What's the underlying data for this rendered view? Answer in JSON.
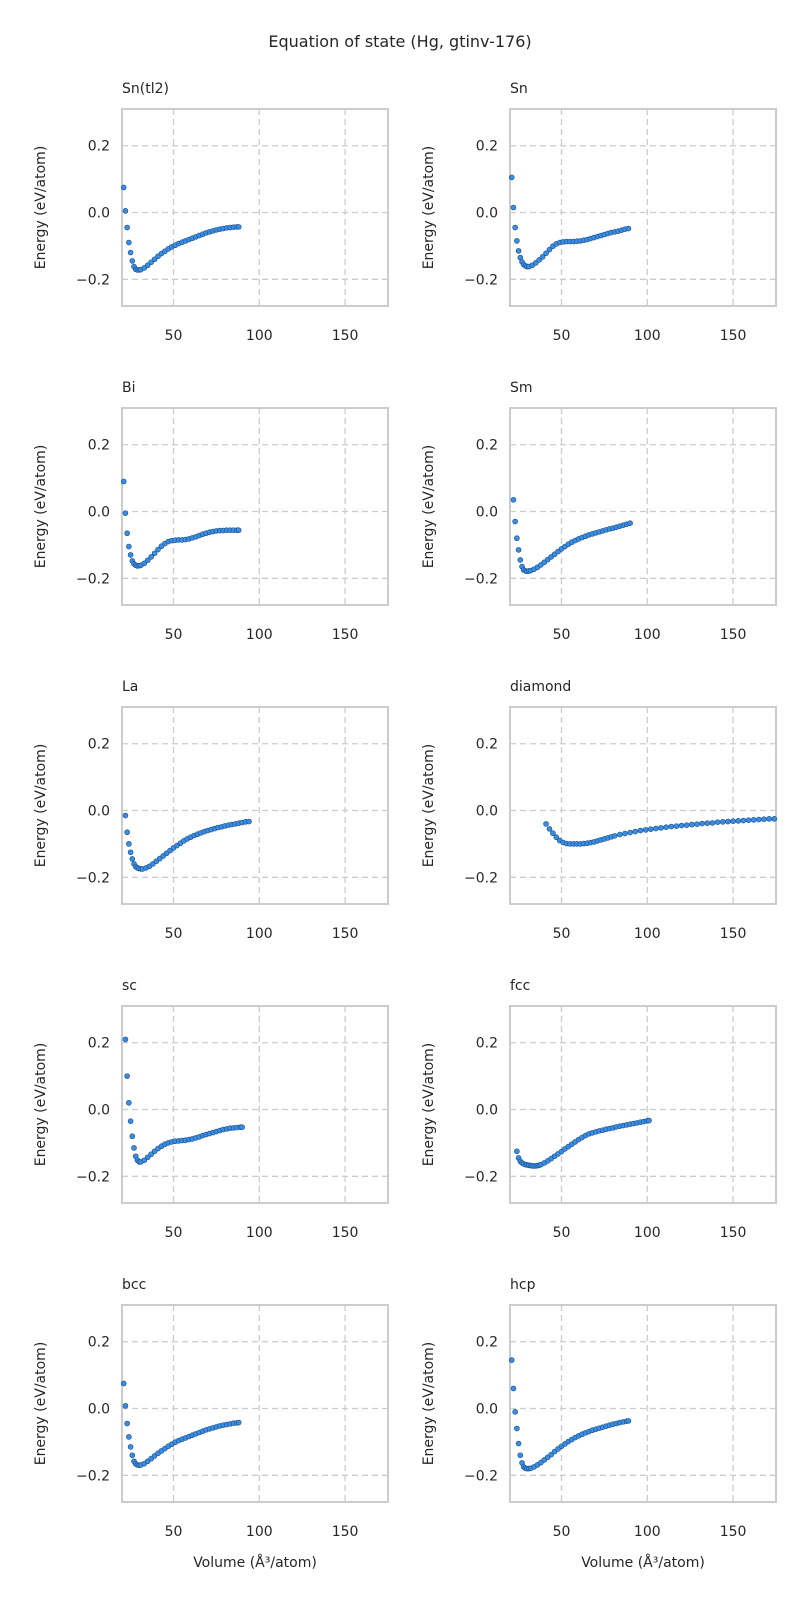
{
  "figure": {
    "title": "Equation of state (Hg, gtinv-176)",
    "xlabel": "Volume (Å³/atom)",
    "ylabel": "Energy (eV/atom)"
  },
  "style": {
    "marker_fill": "#3a8de0",
    "marker_edge": "#1a4f8f",
    "axis_color": "#cccccc",
    "grid_color": "#cccccc",
    "text_color": "#262626"
  },
  "chart_data": [
    {
      "type": "scatter",
      "title": "Sn(tl2)",
      "xlim": [
        20,
        175
      ],
      "ylim": [
        -0.28,
        0.31
      ],
      "xticks": [
        50,
        100,
        150
      ],
      "yticks": [
        0.2,
        0.0,
        -0.2
      ],
      "yticklabels": [
        "0.2",
        "0.0",
        "−0.2"
      ],
      "grid": true,
      "x": [
        21,
        22,
        23,
        24,
        25,
        26,
        27,
        28,
        29,
        30,
        31,
        33,
        35,
        37,
        39,
        41,
        43,
        45,
        47,
        49,
        51,
        53,
        55,
        57,
        59,
        61,
        63,
        65,
        67,
        69,
        71,
        73,
        75,
        77,
        79,
        81,
        83,
        85,
        87,
        88
      ],
      "y": [
        0.075,
        0.005,
        -0.045,
        -0.09,
        -0.12,
        -0.145,
        -0.162,
        -0.17,
        -0.172,
        -0.172,
        -0.171,
        -0.166,
        -0.158,
        -0.149,
        -0.14,
        -0.131,
        -0.123,
        -0.116,
        -0.109,
        -0.103,
        -0.098,
        -0.093,
        -0.089,
        -0.085,
        -0.081,
        -0.077,
        -0.073,
        -0.069,
        -0.065,
        -0.061,
        -0.058,
        -0.055,
        -0.052,
        -0.05,
        -0.048,
        -0.046,
        -0.045,
        -0.044,
        -0.043,
        -0.043
      ]
    },
    {
      "type": "scatter",
      "title": "Sn",
      "xlim": [
        20,
        175
      ],
      "ylim": [
        -0.28,
        0.31
      ],
      "xticks": [
        50,
        100,
        150
      ],
      "yticks": [
        0.2,
        0.0,
        -0.2
      ],
      "yticklabels": [
        "0.2",
        "0.0",
        "−0.2"
      ],
      "grid": true,
      "x": [
        21,
        22,
        23,
        24,
        25,
        26,
        27,
        28,
        29,
        30,
        31,
        33,
        35,
        37,
        39,
        41,
        43,
        45,
        47,
        49,
        51,
        53,
        55,
        57,
        59,
        61,
        63,
        65,
        67,
        69,
        71,
        73,
        75,
        77,
        79,
        81,
        83,
        85,
        87,
        89
      ],
      "y": [
        0.105,
        0.015,
        -0.045,
        -0.085,
        -0.115,
        -0.135,
        -0.148,
        -0.156,
        -0.16,
        -0.162,
        -0.162,
        -0.158,
        -0.151,
        -0.142,
        -0.133,
        -0.122,
        -0.111,
        -0.101,
        -0.094,
        -0.09,
        -0.088,
        -0.087,
        -0.087,
        -0.087,
        -0.086,
        -0.085,
        -0.083,
        -0.081,
        -0.078,
        -0.075,
        -0.072,
        -0.069,
        -0.066,
        -0.063,
        -0.06,
        -0.058,
        -0.056,
        -0.053,
        -0.05,
        -0.048
      ]
    },
    {
      "type": "scatter",
      "title": "Bi",
      "xlim": [
        20,
        175
      ],
      "ylim": [
        -0.28,
        0.31
      ],
      "xticks": [
        50,
        100,
        150
      ],
      "yticks": [
        0.2,
        0.0,
        -0.2
      ],
      "yticklabels": [
        "0.2",
        "0.0",
        "−0.2"
      ],
      "grid": true,
      "x": [
        21,
        22,
        23,
        24,
        25,
        26,
        27,
        28,
        29,
        30,
        31,
        33,
        35,
        37,
        39,
        41,
        43,
        45,
        47,
        49,
        51,
        53,
        55,
        57,
        59,
        61,
        63,
        65,
        67,
        69,
        71,
        73,
        75,
        77,
        79,
        81,
        83,
        85,
        87,
        88
      ],
      "y": [
        0.09,
        -0.005,
        -0.065,
        -0.105,
        -0.13,
        -0.148,
        -0.157,
        -0.161,
        -0.163,
        -0.162,
        -0.161,
        -0.155,
        -0.146,
        -0.136,
        -0.125,
        -0.114,
        -0.104,
        -0.096,
        -0.09,
        -0.087,
        -0.086,
        -0.085,
        -0.085,
        -0.084,
        -0.082,
        -0.079,
        -0.076,
        -0.072,
        -0.068,
        -0.065,
        -0.062,
        -0.06,
        -0.058,
        -0.057,
        -0.057,
        -0.056,
        -0.056,
        -0.056,
        -0.056,
        -0.056
      ]
    },
    {
      "type": "scatter",
      "title": "Sm",
      "xlim": [
        20,
        175
      ],
      "ylim": [
        -0.28,
        0.31
      ],
      "xticks": [
        50,
        100,
        150
      ],
      "yticks": [
        0.2,
        0.0,
        -0.2
      ],
      "yticklabels": [
        "0.2",
        "0.0",
        "−0.2"
      ],
      "grid": true,
      "x": [
        22,
        23,
        24,
        25,
        26,
        27,
        28,
        29,
        30,
        31,
        32,
        34,
        36,
        38,
        40,
        42,
        44,
        46,
        48,
        50,
        52,
        54,
        56,
        58,
        60,
        62,
        64,
        66,
        68,
        70,
        72,
        74,
        76,
        78,
        80,
        82,
        84,
        86,
        88,
        90
      ],
      "y": [
        0.035,
        -0.03,
        -0.08,
        -0.115,
        -0.145,
        -0.165,
        -0.175,
        -0.178,
        -0.179,
        -0.178,
        -0.177,
        -0.173,
        -0.167,
        -0.16,
        -0.152,
        -0.144,
        -0.136,
        -0.128,
        -0.12,
        -0.112,
        -0.105,
        -0.098,
        -0.092,
        -0.087,
        -0.082,
        -0.078,
        -0.074,
        -0.07,
        -0.067,
        -0.064,
        -0.061,
        -0.058,
        -0.055,
        -0.052,
        -0.05,
        -0.047,
        -0.044,
        -0.041,
        -0.038,
        -0.035
      ]
    },
    {
      "type": "scatter",
      "title": "La",
      "xlim": [
        20,
        175
      ],
      "ylim": [
        -0.28,
        0.31
      ],
      "xticks": [
        50,
        100,
        150
      ],
      "yticks": [
        0.2,
        0.0,
        -0.2
      ],
      "yticklabels": [
        "0.2",
        "0.0",
        "−0.2"
      ],
      "grid": true,
      "x": [
        22,
        23,
        24,
        25,
        26,
        27,
        28,
        29,
        30,
        31,
        32,
        34,
        36,
        38,
        40,
        42,
        44,
        46,
        48,
        50,
        52,
        54,
        56,
        58,
        60,
        62,
        64,
        66,
        68,
        70,
        72,
        74,
        76,
        78,
        80,
        82,
        84,
        86,
        88,
        90,
        92,
        94
      ],
      "y": [
        -0.015,
        -0.065,
        -0.1,
        -0.125,
        -0.145,
        -0.16,
        -0.168,
        -0.172,
        -0.174,
        -0.175,
        -0.175,
        -0.172,
        -0.167,
        -0.16,
        -0.152,
        -0.144,
        -0.136,
        -0.128,
        -0.12,
        -0.112,
        -0.105,
        -0.098,
        -0.091,
        -0.085,
        -0.08,
        -0.075,
        -0.071,
        -0.067,
        -0.063,
        -0.06,
        -0.057,
        -0.054,
        -0.051,
        -0.049,
        -0.046,
        -0.044,
        -0.042,
        -0.04,
        -0.038,
        -0.036,
        -0.034,
        -0.033
      ]
    },
    {
      "type": "scatter",
      "title": "diamond",
      "xlim": [
        20,
        175
      ],
      "ylim": [
        -0.28,
        0.31
      ],
      "xticks": [
        50,
        100,
        150
      ],
      "yticks": [
        0.2,
        0.0,
        -0.2
      ],
      "yticklabels": [
        "0.2",
        "0.0",
        "−0.2"
      ],
      "grid": true,
      "x": [
        41,
        43,
        45,
        47,
        49,
        51,
        53,
        55,
        57,
        59,
        61,
        63,
        65,
        67,
        69,
        71,
        73,
        75,
        77,
        79,
        81,
        84,
        87,
        90,
        93,
        96,
        99,
        102,
        105,
        108,
        111,
        114,
        117,
        120,
        123,
        126,
        129,
        132,
        135,
        138,
        141,
        144,
        147,
        150,
        153,
        156,
        159,
        162,
        165,
        168,
        171,
        174
      ],
      "y": [
        -0.04,
        -0.055,
        -0.068,
        -0.08,
        -0.09,
        -0.096,
        -0.099,
        -0.1,
        -0.1,
        -0.1,
        -0.1,
        -0.099,
        -0.098,
        -0.096,
        -0.094,
        -0.091,
        -0.088,
        -0.085,
        -0.082,
        -0.079,
        -0.076,
        -0.072,
        -0.069,
        -0.066,
        -0.063,
        -0.06,
        -0.058,
        -0.056,
        -0.054,
        -0.052,
        -0.05,
        -0.048,
        -0.047,
        -0.045,
        -0.044,
        -0.042,
        -0.041,
        -0.039,
        -0.038,
        -0.037,
        -0.035,
        -0.034,
        -0.033,
        -0.032,
        -0.031,
        -0.03,
        -0.029,
        -0.028,
        -0.027,
        -0.026,
        -0.025,
        -0.025
      ]
    },
    {
      "type": "scatter",
      "title": "sc",
      "xlim": [
        20,
        175
      ],
      "ylim": [
        -0.28,
        0.31
      ],
      "xticks": [
        50,
        100,
        150
      ],
      "yticks": [
        0.2,
        0.0,
        -0.2
      ],
      "yticklabels": [
        "0.2",
        "0.0",
        "−0.2"
      ],
      "grid": true,
      "x": [
        22,
        23,
        24,
        25,
        26,
        27,
        28,
        29,
        30,
        31,
        33,
        35,
        37,
        39,
        41,
        43,
        45,
        47,
        49,
        51,
        53,
        55,
        57,
        59,
        61,
        63,
        65,
        67,
        69,
        71,
        73,
        75,
        77,
        79,
        81,
        83,
        85,
        87,
        89,
        90
      ],
      "y": [
        0.21,
        0.1,
        0.02,
        -0.035,
        -0.08,
        -0.115,
        -0.14,
        -0.152,
        -0.157,
        -0.157,
        -0.152,
        -0.143,
        -0.134,
        -0.125,
        -0.117,
        -0.11,
        -0.104,
        -0.1,
        -0.097,
        -0.095,
        -0.094,
        -0.093,
        -0.092,
        -0.09,
        -0.088,
        -0.085,
        -0.082,
        -0.078,
        -0.075,
        -0.072,
        -0.069,
        -0.066,
        -0.063,
        -0.06,
        -0.058,
        -0.056,
        -0.055,
        -0.054,
        -0.053,
        -0.053
      ]
    },
    {
      "type": "scatter",
      "title": "fcc",
      "xlim": [
        20,
        175
      ],
      "ylim": [
        -0.28,
        0.31
      ],
      "xticks": [
        50,
        100,
        150
      ],
      "yticks": [
        0.2,
        0.0,
        -0.2
      ],
      "yticklabels": [
        "0.2",
        "0.0",
        "−0.2"
      ],
      "grid": true,
      "x": [
        24,
        25,
        26,
        27,
        28,
        29,
        30,
        31,
        32,
        33,
        34,
        35,
        36,
        37,
        38,
        40,
        42,
        44,
        46,
        48,
        50,
        52,
        54,
        56,
        58,
        60,
        62,
        64,
        66,
        68,
        70,
        72,
        74,
        76,
        78,
        80,
        82,
        84,
        86,
        88,
        90,
        92,
        94,
        96,
        98,
        100,
        101
      ],
      "y": [
        -0.125,
        -0.145,
        -0.155,
        -0.16,
        -0.163,
        -0.165,
        -0.166,
        -0.167,
        -0.168,
        -0.169,
        -0.169,
        -0.169,
        -0.168,
        -0.167,
        -0.165,
        -0.16,
        -0.154,
        -0.147,
        -0.14,
        -0.133,
        -0.126,
        -0.118,
        -0.111,
        -0.104,
        -0.097,
        -0.09,
        -0.084,
        -0.078,
        -0.073,
        -0.07,
        -0.067,
        -0.064,
        -0.062,
        -0.059,
        -0.057,
        -0.055,
        -0.052,
        -0.05,
        -0.048,
        -0.046,
        -0.044,
        -0.042,
        -0.04,
        -0.038,
        -0.036,
        -0.034,
        -0.033
      ]
    },
    {
      "type": "scatter",
      "title": "bcc",
      "xlim": [
        20,
        175
      ],
      "ylim": [
        -0.28,
        0.31
      ],
      "xticks": [
        50,
        100,
        150
      ],
      "yticks": [
        0.2,
        0.0,
        -0.2
      ],
      "yticklabels": [
        "0.2",
        "0.0",
        "−0.2"
      ],
      "grid": true,
      "x": [
        21,
        22,
        23,
        24,
        25,
        26,
        27,
        28,
        29,
        30,
        31,
        33,
        35,
        37,
        39,
        41,
        43,
        45,
        47,
        49,
        51,
        53,
        55,
        57,
        59,
        61,
        63,
        65,
        67,
        69,
        71,
        73,
        75,
        77,
        79,
        81,
        83,
        85,
        87,
        88
      ],
      "y": [
        0.075,
        0.008,
        -0.045,
        -0.085,
        -0.115,
        -0.14,
        -0.158,
        -0.166,
        -0.169,
        -0.17,
        -0.169,
        -0.165,
        -0.158,
        -0.15,
        -0.142,
        -0.134,
        -0.127,
        -0.12,
        -0.113,
        -0.107,
        -0.101,
        -0.096,
        -0.092,
        -0.088,
        -0.084,
        -0.08,
        -0.076,
        -0.072,
        -0.068,
        -0.064,
        -0.061,
        -0.058,
        -0.055,
        -0.052,
        -0.05,
        -0.048,
        -0.046,
        -0.044,
        -0.043,
        -0.042
      ]
    },
    {
      "type": "scatter",
      "title": "hcp",
      "xlim": [
        20,
        175
      ],
      "ylim": [
        -0.28,
        0.31
      ],
      "xticks": [
        50,
        100,
        150
      ],
      "yticks": [
        0.2,
        0.0,
        -0.2
      ],
      "yticklabels": [
        "0.2",
        "0.0",
        "−0.2"
      ],
      "grid": true,
      "x": [
        21,
        22,
        23,
        24,
        25,
        26,
        27,
        28,
        29,
        30,
        31,
        32,
        34,
        36,
        38,
        40,
        42,
        44,
        46,
        48,
        50,
        52,
        54,
        56,
        58,
        60,
        62,
        64,
        66,
        68,
        70,
        72,
        74,
        76,
        78,
        80,
        82,
        84,
        86,
        88,
        89
      ],
      "y": [
        0.145,
        0.06,
        -0.01,
        -0.06,
        -0.105,
        -0.14,
        -0.163,
        -0.175,
        -0.179,
        -0.18,
        -0.18,
        -0.179,
        -0.175,
        -0.169,
        -0.162,
        -0.154,
        -0.146,
        -0.138,
        -0.129,
        -0.121,
        -0.113,
        -0.106,
        -0.099,
        -0.093,
        -0.087,
        -0.082,
        -0.077,
        -0.073,
        -0.069,
        -0.065,
        -0.062,
        -0.059,
        -0.056,
        -0.053,
        -0.05,
        -0.047,
        -0.045,
        -0.042,
        -0.04,
        -0.038,
        -0.037
      ]
    }
  ]
}
